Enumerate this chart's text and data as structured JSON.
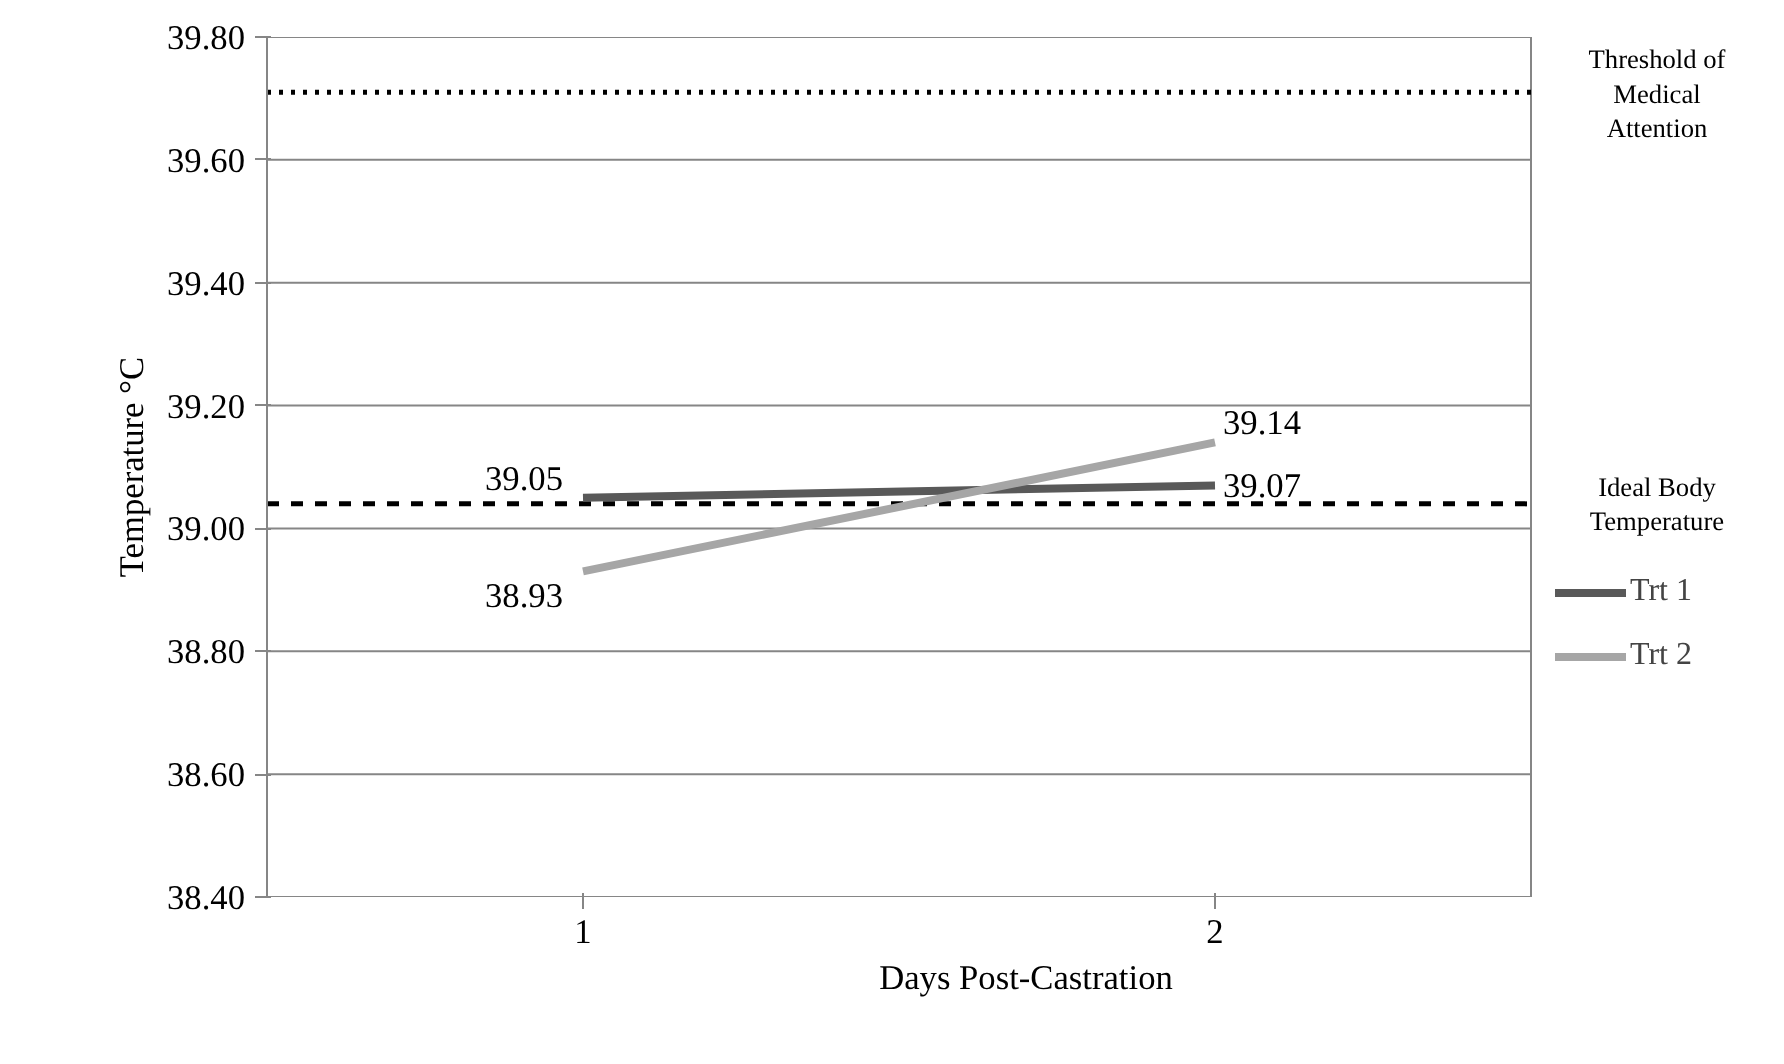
{
  "chart_data": {
    "type": "line",
    "xlabel": "Days Post-Castration",
    "ylabel": "Temperature °C",
    "categories": [
      "1",
      "2"
    ],
    "series": [
      {
        "name": "Trt 1",
        "color": "#595959",
        "values": [
          39.05,
          39.07
        ]
      },
      {
        "name": "Trt 2",
        "color": "#a6a6a6",
        "values": [
          38.93,
          39.14
        ]
      }
    ],
    "ylim": [
      38.4,
      39.8
    ],
    "yticks": [
      {
        "value": 38.4,
        "label": "38.40"
      },
      {
        "value": 38.6,
        "label": "38.60"
      },
      {
        "value": 38.8,
        "label": "38.80"
      },
      {
        "value": 39.0,
        "label": "39.00"
      },
      {
        "value": 39.2,
        "label": "39.20"
      },
      {
        "value": 39.4,
        "label": "39.40"
      },
      {
        "value": 39.6,
        "label": "39.60"
      },
      {
        "value": 39.8,
        "label": "39.80"
      }
    ],
    "ref_lines": [
      {
        "axis": "y",
        "value": 39.71,
        "label": "Threshold of Medical Attention",
        "color": "#000000",
        "line_style": "dotted"
      },
      {
        "axis": "y",
        "value": 39.04,
        "label": "Ideal Body Temperature",
        "color": "#000000",
        "line_style": "dashed"
      }
    ],
    "data_labels": true,
    "grid": "y",
    "legend": "right",
    "marker": "none",
    "line_style": "solid"
  }
}
